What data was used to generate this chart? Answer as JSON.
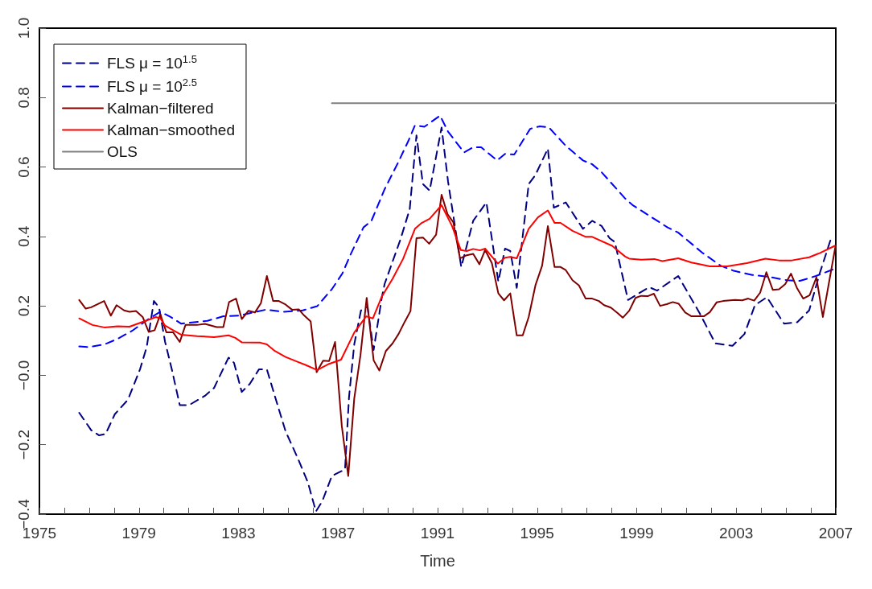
{
  "chart_data": {
    "type": "line",
    "xlabel": "Time",
    "legend": "top left",
    "grid": false,
    "marker": "none",
    "xlim": [
      1975,
      2007
    ],
    "ylim": [
      -0.4,
      1.0
    ],
    "xticks": [
      1975,
      {
        "value": 1976,
        "label": null
      },
      {
        "value": 1977,
        "label": null
      },
      {
        "value": 1978,
        "label": null
      },
      1979,
      {
        "value": 1980,
        "label": null
      },
      {
        "value": 1981,
        "label": null
      },
      {
        "value": 1982,
        "label": null
      },
      1983,
      {
        "value": 1984,
        "label": null
      },
      {
        "value": 1985,
        "label": null
      },
      {
        "value": 1986,
        "label": null
      },
      1987,
      {
        "value": 1988,
        "label": null
      },
      {
        "value": 1989,
        "label": null
      },
      {
        "value": 1990,
        "label": null
      },
      1991,
      {
        "value": 1992,
        "label": null
      },
      {
        "value": 1993,
        "label": null
      },
      {
        "value": 1994,
        "label": null
      },
      1995,
      {
        "value": 1996,
        "label": null
      },
      {
        "value": 1997,
        "label": null
      },
      {
        "value": 1998,
        "label": null
      },
      1999,
      {
        "value": 2000,
        "label": null
      },
      {
        "value": 2001,
        "label": null
      },
      {
        "value": 2002,
        "label": null
      },
      2003,
      {
        "value": 2004,
        "label": null
      },
      {
        "value": 2005,
        "label": null
      },
      {
        "value": 2006,
        "label": null
      },
      2007
    ],
    "yticks": [
      {
        "value": -0.4,
        "label": "−0.4"
      },
      {
        "value": -0.2,
        "label": "−0.2"
      },
      {
        "value": 0,
        "label": "−0.0"
      },
      0.2,
      0.4,
      0.6,
      0.8,
      {
        "value": 1,
        "label": "1.0"
      }
    ],
    "series": [
      {
        "name": "FLS μ = 10$^{1.5}$",
        "color": "#000080",
        "line_style": "dashed",
        "x": [
          1976.6,
          1977.08,
          1977.4,
          1977.66,
          1978.03,
          1978.56,
          1979.04,
          1979.31,
          1979.6,
          1979.81,
          1980.05,
          1980.32,
          1980.64,
          1981.01,
          1981.65,
          1982.02,
          1982.6,
          1982.82,
          1983.13,
          1983.45,
          1983.82,
          1984.14,
          1984.52,
          1984.89,
          1985.37,
          1985.79,
          1986.11,
          1986.37,
          1986.75,
          1987.28,
          1987.44,
          1987.65,
          1987.92,
          1988.18,
          1988.43,
          1988.76,
          1988.87,
          1989.51,
          1989.88,
          1990.15,
          1990.41,
          1990.68,
          1991.16,
          1991.42,
          1991.95,
          1992.43,
          1992.96,
          1993.44,
          1993.71,
          1993.92,
          1994.18,
          1994.66,
          1994.93,
          1995.43,
          1995.67,
          1996.15,
          1996.84,
          1997.21,
          1997.59,
          1997.91,
          1998.12,
          1998.65,
          1999.5,
          1999.82,
          2000.67,
          2001.52,
          2002.16,
          2002.85,
          2003.33,
          2003.75,
          2004.23,
          2004.92,
          2005.45,
          2005.93,
          2006.35,
          2006.83
        ],
        "values": [
          -0.108,
          -0.158,
          -0.173,
          -0.169,
          -0.112,
          -0.07,
          0.017,
          0.081,
          0.214,
          0.195,
          0.096,
          0.017,
          -0.086,
          -0.086,
          -0.059,
          -0.036,
          0.051,
          0.036,
          -0.048,
          -0.025,
          0.017,
          0.017,
          -0.074,
          -0.161,
          -0.237,
          -0.309,
          -0.392,
          -0.362,
          -0.29,
          -0.271,
          -0.063,
          0.089,
          0.187,
          0.198,
          0.073,
          0.225,
          0.263,
          0.392,
          0.479,
          0.691,
          0.551,
          0.532,
          0.714,
          0.558,
          0.312,
          0.445,
          0.498,
          0.27,
          0.365,
          0.358,
          0.252,
          0.551,
          0.577,
          0.653,
          0.483,
          0.498,
          0.422,
          0.445,
          0.43,
          0.395,
          0.384,
          0.217,
          0.254,
          0.244,
          0.286,
          0.18,
          0.092,
          0.085,
          0.119,
          0.202,
          0.225,
          0.149,
          0.153,
          0.187,
          0.293,
          0.399
        ]
      },
      {
        "name": "FLS μ = 10$^{2.5}$",
        "color": "#0000ff",
        "line_style": "dashed",
        "x": [
          1976.6,
          1976.97,
          1977.61,
          1978.14,
          1978.72,
          1979.42,
          1979.86,
          1980.27,
          1980.69,
          1981.75,
          1982.39,
          1983.03,
          1984.09,
          1984.83,
          1985.58,
          1986.16,
          1986.75,
          1987.17,
          1987.49,
          1988.02,
          1988.34,
          1988.87,
          1989.4,
          1989.83,
          1990.09,
          1990.47,
          1991.1,
          1991.42,
          1992.06,
          1992.43,
          1992.75,
          1993.39,
          1993.71,
          1994.08,
          1994.72,
          1995.09,
          1995.46,
          1996.15,
          1996.84,
          1997.21,
          1997.59,
          1998.54,
          1998.86,
          1999.5,
          2000.24,
          2000.67,
          2000.99,
          2001.62,
          2002.37,
          2002.9,
          2003.64,
          2004.28,
          2005.03,
          2005.56,
          2006.2,
          2006.99
        ],
        "values": [
          0.083,
          0.081,
          0.089,
          0.105,
          0.128,
          0.164,
          0.183,
          0.168,
          0.149,
          0.157,
          0.17,
          0.172,
          0.189,
          0.183,
          0.187,
          0.199,
          0.248,
          0.293,
          0.346,
          0.426,
          0.445,
          0.536,
          0.611,
          0.676,
          0.72,
          0.716,
          0.748,
          0.702,
          0.642,
          0.657,
          0.657,
          0.619,
          0.638,
          0.636,
          0.71,
          0.717,
          0.715,
          0.661,
          0.619,
          0.608,
          0.585,
          0.509,
          0.489,
          0.46,
          0.426,
          0.411,
          0.392,
          0.354,
          0.316,
          0.301,
          0.289,
          0.284,
          0.274,
          0.272,
          0.286,
          0.308
        ]
      },
      {
        "name": "Kalman−filtered",
        "color": "#800000",
        "line_style": "solid",
        "x": [
          1976.6,
          1976.86,
          1977.08,
          1977.6,
          1977.87,
          1978.1,
          1978.4,
          1978.62,
          1978.88,
          1979.15,
          1979.39,
          1979.63,
          1979.86,
          1980.1,
          1980.37,
          1980.64,
          1980.87,
          1981.33,
          1981.65,
          1982.12,
          1982.39,
          1982.62,
          1982.9,
          1983.13,
          1983.4,
          1983.66,
          1983.9,
          1984.14,
          1984.39,
          1984.62,
          1984.89,
          1985.15,
          1985.42,
          1985.63,
          1985.9,
          1986.14,
          1986.4,
          1986.64,
          1986.88,
          1987.15,
          1987.41,
          1987.65,
          1987.9,
          1988.15,
          1988.43,
          1988.66,
          1988.92,
          1989.19,
          1989.43,
          1989.67,
          1989.91,
          1990.15,
          1990.41,
          1990.66,
          1990.94,
          1991.16,
          1991.4,
          1991.63,
          1991.9,
          1992.17,
          1992.43,
          1992.68,
          1992.91,
          1993.18,
          1993.44,
          1993.67,
          1993.92,
          1994.18,
          1994.42,
          1994.66,
          1994.93,
          1995.2,
          1995.43,
          1995.7,
          1995.94,
          1996.15,
          1996.42,
          1996.68,
          1996.95,
          1997.21,
          1997.48,
          1997.69,
          1997.96,
          1998.22,
          1998.44,
          1998.7,
          1998.95,
          1999.18,
          1999.44,
          1999.69,
          1999.94,
          2000.21,
          2000.45,
          2000.69,
          2000.95,
          2001.2,
          2001.7,
          2001.94,
          2002.21,
          2002.47,
          2002.95,
          2003.24,
          2003.48,
          2003.72,
          2003.96,
          2004.21,
          2004.47,
          2004.72,
          2004.97,
          2005.2,
          2005.45,
          2005.69,
          2005.95,
          2006.22,
          2006.48,
          2006.99
        ],
        "values": [
          0.217,
          0.192,
          0.196,
          0.214,
          0.172,
          0.202,
          0.187,
          0.183,
          0.185,
          0.168,
          0.125,
          0.13,
          0.176,
          0.124,
          0.124,
          0.096,
          0.145,
          0.145,
          0.148,
          0.139,
          0.139,
          0.211,
          0.221,
          0.162,
          0.186,
          0.181,
          0.208,
          0.286,
          0.214,
          0.214,
          0.204,
          0.189,
          0.19,
          0.173,
          0.155,
          0.009,
          0.042,
          0.041,
          0.096,
          -0.146,
          -0.29,
          -0.067,
          0.058,
          0.223,
          0.043,
          0.014,
          0.07,
          0.092,
          0.119,
          0.153,
          0.185,
          0.395,
          0.397,
          0.379,
          0.405,
          0.52,
          0.464,
          0.441,
          0.337,
          0.346,
          0.35,
          0.32,
          0.361,
          0.323,
          0.236,
          0.216,
          0.236,
          0.115,
          0.115,
          0.168,
          0.259,
          0.316,
          0.43,
          0.312,
          0.312,
          0.303,
          0.274,
          0.259,
          0.221,
          0.221,
          0.214,
          0.202,
          0.195,
          0.18,
          0.166,
          0.186,
          0.223,
          0.229,
          0.228,
          0.235,
          0.2,
          0.205,
          0.211,
          0.206,
          0.181,
          0.17,
          0.17,
          0.182,
          0.21,
          0.214,
          0.217,
          0.216,
          0.221,
          0.215,
          0.238,
          0.297,
          0.246,
          0.248,
          0.263,
          0.293,
          0.25,
          0.221,
          0.231,
          0.282,
          0.168,
          0.373
        ]
      },
      {
        "name": "Kalman−smoothed",
        "color": "#ff0000",
        "line_style": "solid",
        "x": [
          1976.6,
          1977.13,
          1977.61,
          1978.14,
          1978.62,
          1979.31,
          1979.68,
          1979.86,
          1980.05,
          1980.37,
          1980.69,
          1981.33,
          1982.02,
          1982.6,
          1982.87,
          1983.13,
          1983.88,
          1984.14,
          1984.46,
          1984.89,
          1985.37,
          1985.69,
          1986.16,
          1986.64,
          1987.12,
          1987.65,
          1988.13,
          1988.4,
          1988.76,
          1989.19,
          1989.61,
          1990.09,
          1990.36,
          1990.68,
          1991.16,
          1991.58,
          1991.93,
          1992.17,
          1992.43,
          1992.7,
          1992.91,
          1993.18,
          1993.42,
          1993.71,
          1993.92,
          1994.18,
          1994.66,
          1995.03,
          1995.43,
          1995.7,
          1995.94,
          1996.42,
          1996.95,
          1997.21,
          1998.01,
          1998.54,
          1998.7,
          1999.18,
          1999.71,
          2000.03,
          2000.35,
          2000.67,
          2001.2,
          2001.94,
          2002.63,
          2003.43,
          2004.17,
          2004.72,
          2005.23,
          2005.93,
          2006.35,
          2006.96
        ],
        "values": [
          0.164,
          0.145,
          0.138,
          0.141,
          0.14,
          0.158,
          0.168,
          0.164,
          0.143,
          0.13,
          0.117,
          0.113,
          0.11,
          0.115,
          0.108,
          0.095,
          0.094,
          0.089,
          0.07,
          0.053,
          0.039,
          0.03,
          0.015,
          0.033,
          0.045,
          0.123,
          0.17,
          0.164,
          0.227,
          0.278,
          0.335,
          0.422,
          0.439,
          0.451,
          0.49,
          0.43,
          0.361,
          0.358,
          0.364,
          0.36,
          0.365,
          0.342,
          0.322,
          0.339,
          0.341,
          0.337,
          0.422,
          0.455,
          0.475,
          0.439,
          0.439,
          0.416,
          0.399,
          0.399,
          0.373,
          0.342,
          0.336,
          0.333,
          0.335,
          0.329,
          0.333,
          0.337,
          0.325,
          0.314,
          0.314,
          0.323,
          0.336,
          0.331,
          0.331,
          0.34,
          0.352,
          0.373
        ]
      },
      {
        "name": "OLS",
        "color": "#808080",
        "line_style": "solid",
        "x": [
          1986.75,
          2007
        ],
        "values": [
          0.784,
          0.784
        ]
      }
    ]
  }
}
